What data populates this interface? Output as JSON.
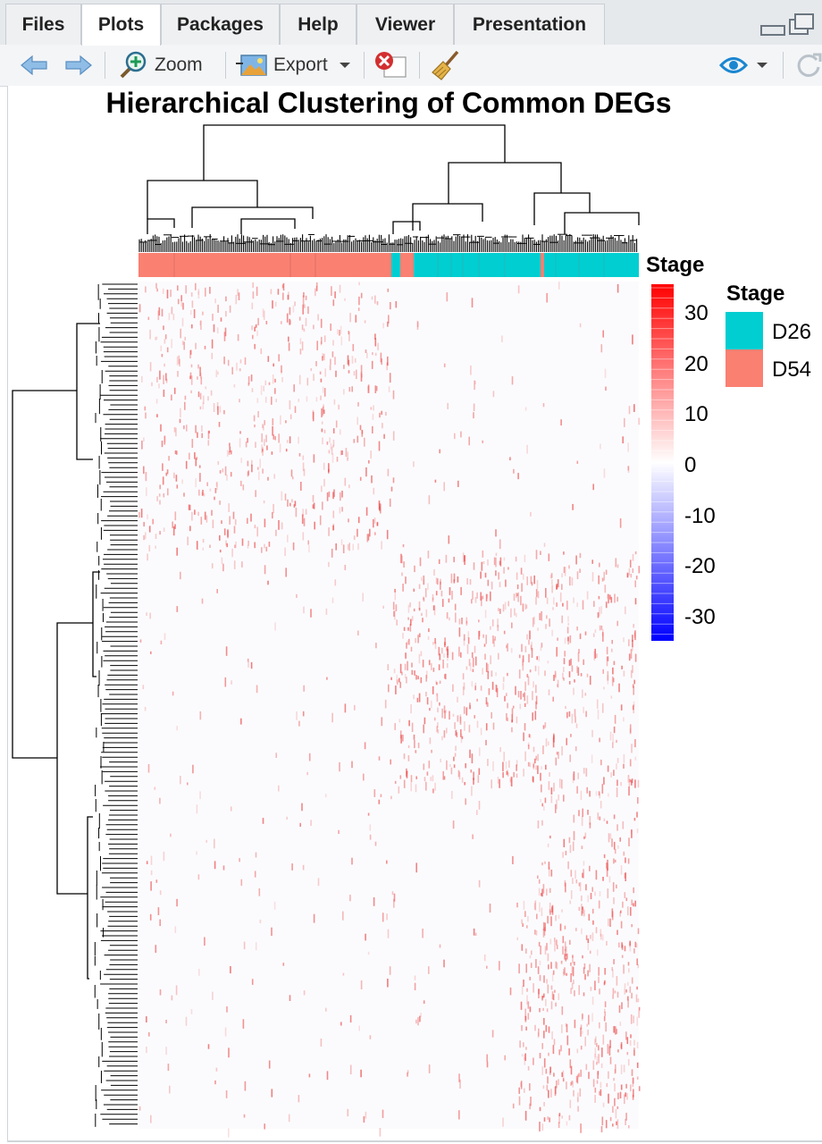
{
  "tabs": [
    {
      "label": "Files",
      "active": false
    },
    {
      "label": "Plots",
      "active": true
    },
    {
      "label": "Packages",
      "active": false
    },
    {
      "label": "Help",
      "active": false
    },
    {
      "label": "Viewer",
      "active": false
    },
    {
      "label": "Presentation",
      "active": false
    }
  ],
  "toolbar": {
    "zoom_label": "Zoom",
    "export_label": "Export"
  },
  "plot": {
    "title": "Hierarchical Clustering of Common DEGs",
    "annotation_label": "Stage",
    "color_scale": {
      "title": "Stage",
      "ticks": [
        "30",
        "20",
        "10",
        "0",
        "-10",
        "-20",
        "-30"
      ],
      "low_color": "#0000ff",
      "mid_color": "#ffffff",
      "high_color": "#ff0000"
    },
    "legend": {
      "title": "Stage",
      "items": [
        {
          "label": "D26",
          "color": "#00ced1"
        },
        {
          "label": "D54",
          "color": "#fa8072"
        }
      ]
    }
  },
  "chart_data": {
    "type": "heatmap",
    "title": "Hierarchical Clustering of Common DEGs",
    "column_annotation": "Stage",
    "column_groups": [
      "D54",
      "D26"
    ],
    "color_range": [
      -35,
      35
    ],
    "color_ticks": [
      30,
      20,
      10,
      0,
      -10,
      -20,
      -30
    ],
    "row_dendrogram": true,
    "column_dendrogram": true
  }
}
